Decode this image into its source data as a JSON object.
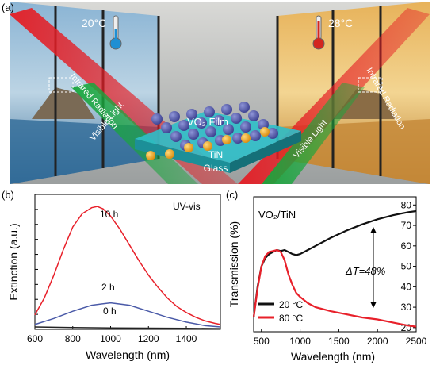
{
  "panel_a": {
    "label": "(a)",
    "temp_left": "20°C",
    "temp_right": "28°C",
    "film_label": "VO₂ Film",
    "tin_label": "TiN",
    "glass_label": "Glass",
    "visible_light": "Visible Light",
    "infrared": "Infrared Radiation"
  },
  "chart_data": [
    {
      "panel": "(b)",
      "type": "line",
      "annotation": "UV-vis",
      "xlabel": "Wavelength (nm)",
      "ylabel": "Extinction (a.u.)",
      "xlim": [
        600,
        1580
      ],
      "x_ticks": [
        "600",
        "800",
        "1000",
        "1200",
        "1400"
      ],
      "y_ticks_labeled": false,
      "series": [
        {
          "name": "10 h",
          "color": "#e8202a",
          "x": [
            600,
            650,
            700,
            750,
            800,
            850,
            900,
            930,
            960,
            1000,
            1050,
            1100,
            1150,
            1200,
            1250,
            1300,
            1350,
            1400,
            1450,
            1500,
            1550,
            1580
          ],
          "y": [
            0.12,
            0.26,
            0.45,
            0.66,
            0.85,
            0.96,
            1.01,
            1.02,
            1.0,
            0.94,
            0.83,
            0.7,
            0.57,
            0.45,
            0.35,
            0.26,
            0.19,
            0.14,
            0.1,
            0.07,
            0.05,
            0.04
          ]
        },
        {
          "name": "2 h",
          "color": "#4a5aa8",
          "x": [
            600,
            700,
            800,
            900,
            1000,
            1100,
            1200,
            1300,
            1400,
            1500,
            1580
          ],
          "y": [
            0.04,
            0.09,
            0.15,
            0.2,
            0.22,
            0.2,
            0.15,
            0.1,
            0.06,
            0.03,
            0.02
          ]
        },
        {
          "name": "0 h",
          "color": "#222222",
          "x": [
            600,
            800,
            1000,
            1200,
            1400,
            1580
          ],
          "y": [
            0.02,
            0.015,
            0.012,
            0.01,
            0.008,
            0.006
          ]
        }
      ]
    },
    {
      "panel": "(c)",
      "type": "line",
      "title": "VO₂/TiN",
      "xlabel": "Wavelength (nm)",
      "ylabel": "Transmission (%)",
      "xlim": [
        400,
        2500
      ],
      "ylim": [
        18,
        84
      ],
      "x_ticks": [
        500,
        1000,
        1500,
        2000,
        2500
      ],
      "y_ticks": [
        20,
        30,
        40,
        50,
        60,
        70,
        80
      ],
      "annotation": "ΔT=48%",
      "legend_position": "bottom-left",
      "series": [
        {
          "name": "20 °C",
          "color": "#111111",
          "x": [
            400,
            450,
            500,
            550,
            600,
            650,
            700,
            750,
            800,
            850,
            900,
            950,
            1000,
            1100,
            1200,
            1400,
            1600,
            1800,
            2000,
            2200,
            2400,
            2500
          ],
          "y": [
            25,
            40,
            50,
            54,
            56,
            57,
            58,
            57.5,
            58,
            57,
            56,
            55.5,
            56,
            58,
            60,
            64,
            67.5,
            70.5,
            73,
            75,
            76.5,
            77
          ]
        },
        {
          "name": "80 °C",
          "color": "#e8202a",
          "x": [
            400,
            450,
            500,
            550,
            600,
            650,
            700,
            750,
            800,
            850,
            900,
            950,
            1000,
            1100,
            1200,
            1400,
            1600,
            1800,
            2000,
            2200,
            2400,
            2500
          ],
          "y": [
            25,
            39,
            50,
            55,
            57,
            57.5,
            58,
            57,
            53,
            46,
            41,
            37,
            35,
            32,
            30,
            28,
            26.5,
            25,
            24,
            22.5,
            21,
            20.5
          ]
        }
      ]
    }
  ]
}
